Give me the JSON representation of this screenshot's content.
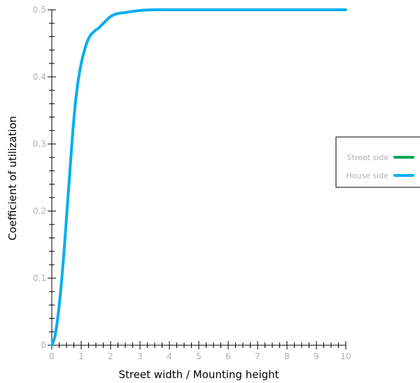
{
  "chart_data": {
    "type": "line",
    "title": "",
    "xlabel": "Street width / Mounting height",
    "ylabel": "Coefficient of utilization",
    "xlim": [
      0,
      10
    ],
    "ylim": [
      0,
      0.5
    ],
    "xticks": [
      0,
      1,
      2,
      3,
      4,
      5,
      6,
      7,
      8,
      9,
      10
    ],
    "yticks": [
      0,
      0.1,
      0.2,
      0.3,
      0.4,
      0.5
    ],
    "grid": false,
    "legend_position": "right",
    "series": [
      {
        "name": "Street side",
        "color": "#00a651",
        "x": [],
        "y": []
      },
      {
        "name": "House side",
        "color": "#00aeef",
        "x": [
          0,
          0.1,
          0.2,
          0.3,
          0.4,
          0.5,
          0.6,
          0.7,
          0.8,
          0.9,
          1.0,
          1.1,
          1.2,
          1.3,
          1.4,
          1.5,
          1.6,
          1.8,
          2.0,
          2.2,
          2.5,
          3.0,
          3.5,
          4.0,
          5.0,
          6.0,
          7.0,
          8.0,
          9.0,
          10.0
        ],
        "y": [
          0,
          0.012,
          0.04,
          0.08,
          0.13,
          0.19,
          0.25,
          0.31,
          0.36,
          0.395,
          0.42,
          0.438,
          0.452,
          0.461,
          0.466,
          0.47,
          0.473,
          0.482,
          0.49,
          0.494,
          0.496,
          0.499,
          0.5,
          0.5,
          0.5,
          0.5,
          0.5,
          0.5,
          0.5,
          0.5
        ]
      }
    ]
  }
}
